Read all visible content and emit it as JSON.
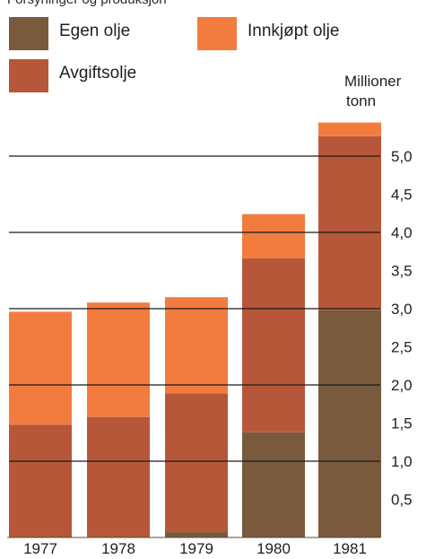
{
  "top_caption_partial": "Forsyninger og produksjon",
  "chart_data": {
    "type": "bar",
    "stacked": true,
    "title": "",
    "xlabel": "",
    "ylabel": "Millioner tonn",
    "ylabel_lines": [
      "Millioner",
      "tonn"
    ],
    "ylim": [
      0,
      5.5
    ],
    "yticks": [
      0.5,
      1.0,
      1.5,
      2.0,
      2.5,
      3.0,
      3.5,
      4.0,
      4.5,
      5.0
    ],
    "ytick_labels": [
      "0,5",
      "1,0",
      "1,5",
      "2,0",
      "2,5",
      "3,0",
      "3,5",
      "4,0",
      "4,5",
      "5,0"
    ],
    "gridlines": [
      1.0,
      2.0,
      3.0,
      4.0,
      5.0
    ],
    "grid": true,
    "legend_position": "top",
    "categories": [
      "1977",
      "1978",
      "1979",
      "1980",
      "1981"
    ],
    "series": [
      {
        "name": "Egen olje",
        "color": "#7a5a3c",
        "values": [
          0.0,
          0.0,
          0.07,
          1.38,
          2.98
        ]
      },
      {
        "name": "Avgiftsolje",
        "color": "#b7573a",
        "values": [
          1.48,
          1.58,
          1.82,
          2.28,
          2.28
        ]
      },
      {
        "name": "Innkjøpt olje",
        "color": "#f27c40",
        "values": [
          1.48,
          1.5,
          1.26,
          0.58,
          0.18
        ]
      }
    ],
    "legend_layout": [
      {
        "series": "Egen olje",
        "row": 0,
        "col": 0
      },
      {
        "series": "Innkjøpt olje",
        "row": 0,
        "col": 1
      },
      {
        "series": "Avgiftsolje",
        "row": 1,
        "col": 0
      }
    ]
  }
}
